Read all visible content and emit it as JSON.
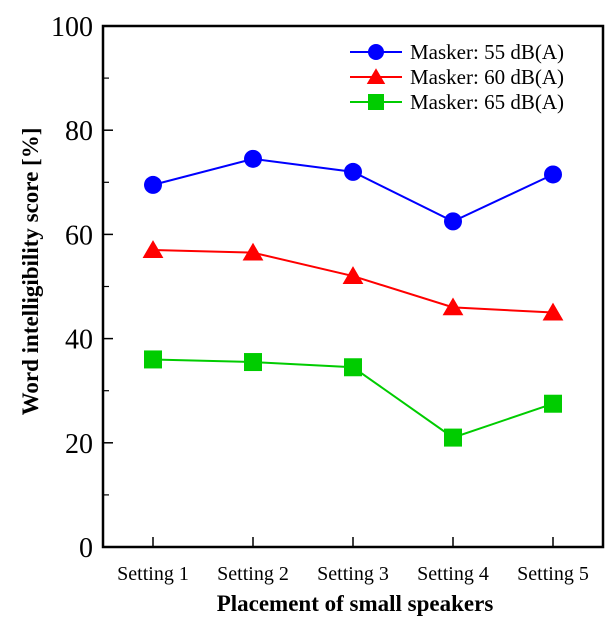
{
  "chart_data": {
    "type": "line",
    "title": "",
    "xlabel": "Placement of small speakers",
    "ylabel": "Word intelligibility score [%]",
    "categories": [
      "Setting 1",
      "Setting 2",
      "Setting 3",
      "Setting 4",
      "Setting 5"
    ],
    "ylim": [
      0,
      100
    ],
    "yticks": [
      0,
      20,
      40,
      60,
      80,
      100
    ],
    "grid": false,
    "legend_position": "top-right",
    "series": [
      {
        "name": "Masker: 55 dB(A)",
        "color": "#0000ff",
        "marker": "circle",
        "values": [
          69.5,
          74.5,
          72.0,
          62.5,
          71.5
        ]
      },
      {
        "name": "Masker: 60 dB(A)",
        "color": "#ff0000",
        "marker": "triangle",
        "values": [
          57.0,
          56.5,
          52.0,
          46.0,
          45.0
        ]
      },
      {
        "name": "Masker: 65 dB(A)",
        "color": "#00cc00",
        "marker": "square",
        "values": [
          36.0,
          35.5,
          34.5,
          21.0,
          27.5
        ]
      }
    ]
  }
}
